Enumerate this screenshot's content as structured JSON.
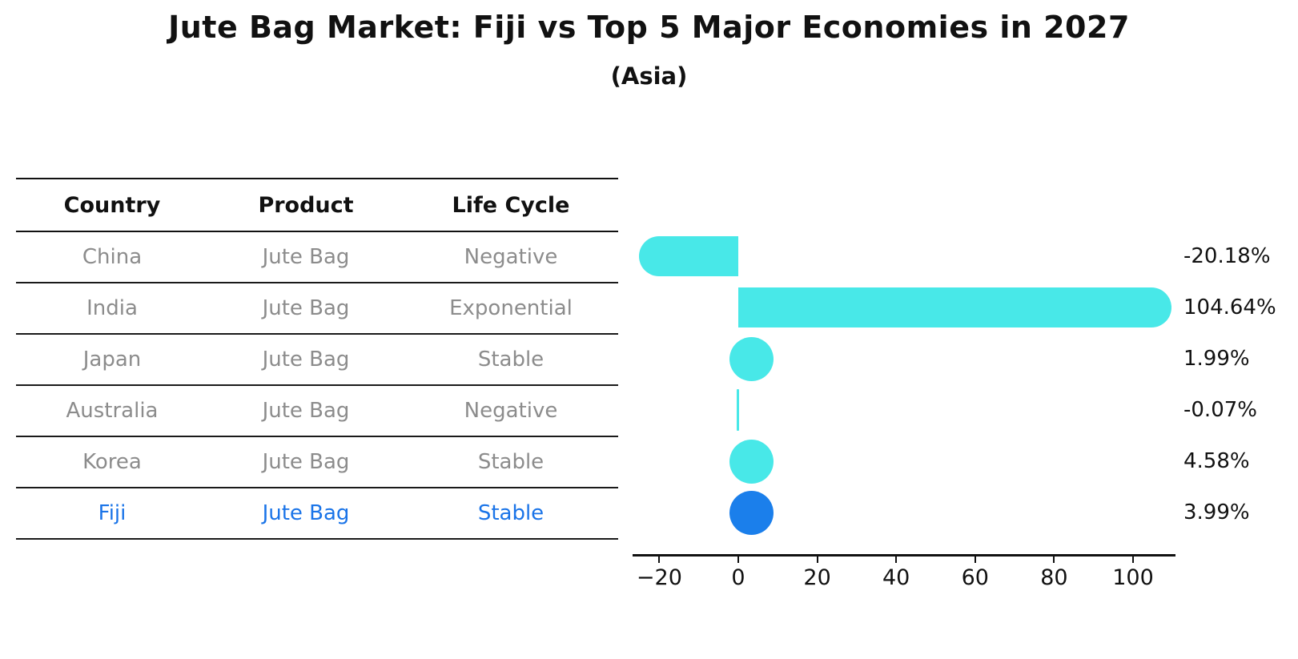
{
  "header": {
    "title": "Jute Bag Market: Fiji vs Top 5 Major Economies in 2027",
    "subtitle": "(Asia)"
  },
  "table": {
    "headers": [
      "Country",
      "Product",
      "Life Cycle"
    ],
    "rows": [
      {
        "country": "China",
        "product": "Jute Bag",
        "life_cycle": "Negative",
        "highlight": false
      },
      {
        "country": "India",
        "product": "Jute Bag",
        "life_cycle": "Exponential",
        "highlight": false
      },
      {
        "country": "Japan",
        "product": "Jute Bag",
        "life_cycle": "Stable",
        "highlight": false
      },
      {
        "country": "Australia",
        "product": "Jute Bag",
        "life_cycle": "Negative",
        "highlight": false
      },
      {
        "country": "Korea",
        "product": "Jute Bag",
        "life_cycle": "Stable",
        "highlight": false
      },
      {
        "country": "Fiji",
        "product": "Jute Bag",
        "life_cycle": "Stable",
        "highlight": true
      }
    ]
  },
  "chart_data": {
    "type": "bar",
    "orientation": "horizontal",
    "categories": [
      "China",
      "India",
      "Japan",
      "Australia",
      "Korea",
      "Fiji"
    ],
    "values": [
      -20.18,
      104.64,
      1.99,
      -0.07,
      4.58,
      3.99
    ],
    "value_labels": [
      "-20.18%",
      "104.64%",
      "1.99%",
      "-0.07%",
      "4.58%",
      "3.99%"
    ],
    "x_ticks": [
      -20,
      0,
      20,
      40,
      60,
      80,
      100
    ],
    "x_tick_labels": [
      "−20",
      "0",
      "20",
      "40",
      "60",
      "80",
      "100"
    ],
    "xlim": [
      -27,
      111
    ],
    "grid": false,
    "legend": "none",
    "highlight_category": "Fiji",
    "bar_color": "#48e8e8",
    "highlight_color": "#1b7feb"
  },
  "colors": {
    "background": "#ffffff",
    "bar_cyan": "#48e8e8",
    "bar_blue": "#1b7feb",
    "table_text_gray": "#8c8c8c",
    "table_text_highlight": "#1a74e8",
    "text_black": "#111111"
  }
}
